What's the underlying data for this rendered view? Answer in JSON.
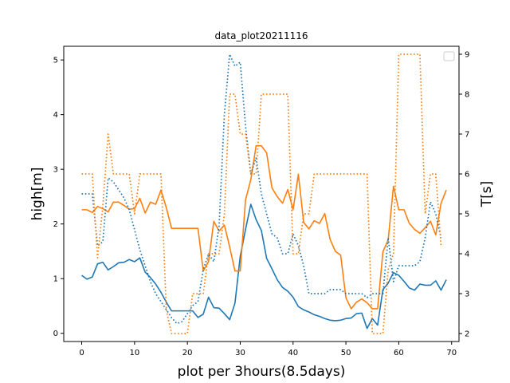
{
  "chart_data": {
    "type": "line",
    "title": "data_plot20211116",
    "xlabel": "plot per 3hours(8.5days)",
    "ylabel_left": "high[m]",
    "ylabel_right": "T[s]",
    "xlim": [
      -3.4,
      71.4
    ],
    "ylim_left": [
      -0.15,
      5.25
    ],
    "ylim_right": [
      1.8,
      9.2
    ],
    "xticks": [
      0,
      10,
      20,
      30,
      40,
      50,
      60,
      70
    ],
    "yticks_left": [
      0,
      1,
      2,
      3,
      4,
      5
    ],
    "yticks_right": [
      2,
      3,
      4,
      5,
      6,
      7,
      8,
      9
    ],
    "grid": false,
    "legend": "top-right, empty box",
    "series": [
      {
        "axis": "left",
        "style": "solid",
        "color": "#1f77b4",
        "values": [
          1.06,
          0.99,
          1.03,
          1.27,
          1.3,
          1.16,
          1.22,
          1.29,
          1.3,
          1.35,
          1.31,
          1.38,
          1.12,
          1.02,
          0.9,
          0.75,
          0.57,
          0.41,
          0.41,
          0.41,
          0.41,
          0.41,
          0.29,
          0.35,
          0.66,
          0.47,
          0.46,
          0.36,
          0.25,
          0.55,
          1.41,
          1.9,
          2.36,
          2.08,
          1.88,
          1.37,
          1.18,
          0.98,
          0.84,
          0.77,
          0.66,
          0.49,
          0.43,
          0.39,
          0.34,
          0.31,
          0.27,
          0.24,
          0.23,
          0.24,
          0.27,
          0.28,
          0.36,
          0.37,
          0.09,
          0.27,
          0.15,
          0.8,
          0.92,
          1.11,
          1.06,
          0.95,
          0.83,
          0.79,
          0.9,
          0.88,
          0.88,
          0.96,
          0.79,
          0.98
        ]
      },
      {
        "axis": "left",
        "style": "solid",
        "color": "#ff7f0e",
        "values": [
          2.26,
          2.26,
          2.21,
          2.32,
          2.28,
          2.22,
          2.4,
          2.4,
          2.34,
          2.27,
          2.28,
          2.47,
          2.2,
          2.4,
          2.36,
          2.62,
          2.3,
          1.92,
          1.92,
          1.92,
          1.92,
          1.92,
          1.92,
          1.14,
          1.31,
          2.05,
          1.87,
          1.98,
          1.58,
          1.14,
          1.14,
          2.44,
          2.81,
          3.43,
          3.43,
          3.3,
          2.66,
          2.5,
          2.38,
          2.63,
          2.26,
          2.91,
          2.03,
          1.91,
          2.06,
          2.01,
          2.19,
          1.72,
          1.5,
          1.43,
          0.65,
          0.45,
          0.57,
          0.63,
          0.56,
          0.45,
          0.45,
          1.49,
          1.71,
          2.69,
          2.26,
          2.26,
          2.01,
          1.9,
          1.83,
          1.93,
          2.05,
          1.8,
          2.38,
          2.62
        ]
      },
      {
        "axis": "right",
        "style": "dotted",
        "color": "#1f77b4",
        "values": [
          5.5,
          5.5,
          5.5,
          4.2,
          4.3,
          5.9,
          5.8,
          5.6,
          5.4,
          5.1,
          4.6,
          4.1,
          3.7,
          3.3,
          3.0,
          2.8,
          2.6,
          2.4,
          2.25,
          2.3,
          2.5,
          2.7,
          2.8,
          3.6,
          4.0,
          3.8,
          4.7,
          7.5,
          9.0,
          8.7,
          8.8,
          7.2,
          6.0,
          6.4,
          5.5,
          5.0,
          4.5,
          4.4,
          4.0,
          4.0,
          4.5,
          4.2,
          3.7,
          3.0,
          3.0,
          3.0,
          3.0,
          3.1,
          3.1,
          3.1,
          3.0,
          3.0,
          3.0,
          3.0,
          2.9,
          3.0,
          3.0,
          3.0,
          4.4,
          3.3,
          3.7,
          3.7,
          3.7,
          3.7,
          3.8,
          4.4,
          5.3,
          5.0,
          4.4
        ]
      },
      {
        "axis": "right",
        "style": "dotted",
        "color": "#ff7f0e",
        "values": [
          6.0,
          6.0,
          6.0,
          3.9,
          5.2,
          7.0,
          6.0,
          6.0,
          6.0,
          6.0,
          5.0,
          6.0,
          6.0,
          6.0,
          6.0,
          6.0,
          2.6,
          2.0,
          2.0,
          2.0,
          2.0,
          3.0,
          3.0,
          3.0,
          4.0,
          4.0,
          4.0,
          5.0,
          8.0,
          8.0,
          7.0,
          7.0,
          6.0,
          6.0,
          8.0,
          8.0,
          8.0,
          8.0,
          8.0,
          8.0,
          4.0,
          4.0,
          5.0,
          5.0,
          6.0,
          6.0,
          6.0,
          6.0,
          6.0,
          6.0,
          6.0,
          6.0,
          6.0,
          6.0,
          6.0,
          2.0,
          2.0,
          2.0,
          3.6,
          4.0,
          9.0,
          9.0,
          9.0,
          9.0,
          9.0,
          5.0,
          6.0,
          6.0,
          4.2
        ]
      }
    ]
  }
}
